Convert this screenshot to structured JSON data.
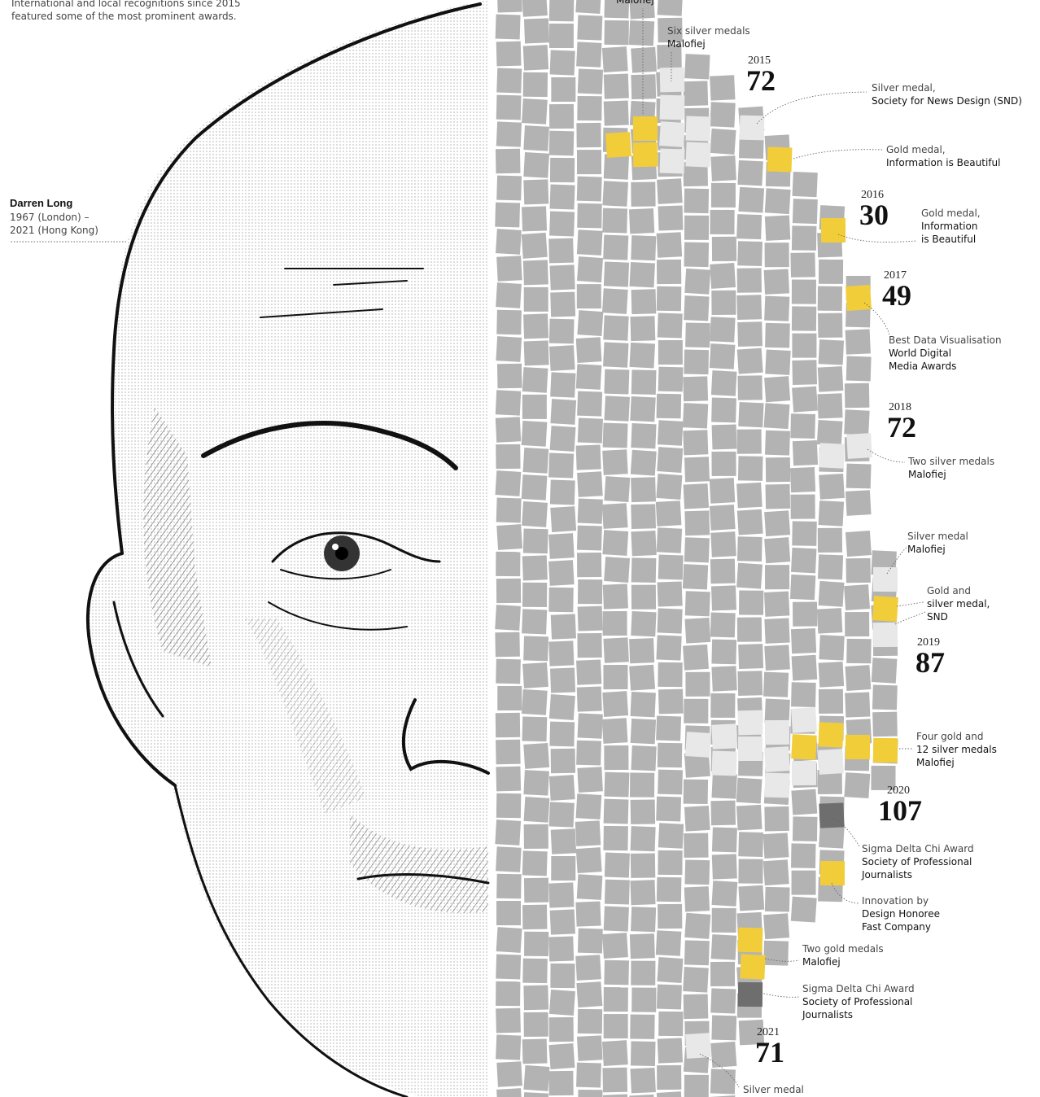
{
  "intro": {
    "lines": [
      "International and local recognitions since 2015",
      "featured some of the most prominent awards."
    ]
  },
  "person": {
    "name": "Darren Long",
    "born": "1967 (London) –",
    "died": "2021 (Hong Kong)"
  },
  "years": [
    {
      "year": "2015",
      "count": 72
    },
    {
      "year": "2016",
      "count": 30
    },
    {
      "year": "2017",
      "count": 49
    },
    {
      "year": "2018",
      "count": 72
    },
    {
      "year": "2019",
      "count": 87
    },
    {
      "year": "2020",
      "count": 107
    },
    {
      "year": "2021",
      "count": 71
    }
  ],
  "annotations": [
    {
      "lines": [
        "Malofiej"
      ]
    },
    {
      "lines": [
        "Six silver medals",
        "Malofiej"
      ]
    },
    {
      "lines": [
        "Silver medal,",
        "Society for News Design (SND)"
      ]
    },
    {
      "lines": [
        "Gold medal,",
        "Information is Beautiful"
      ]
    },
    {
      "lines": [
        "Gold medal,",
        "Information",
        "is Beautiful"
      ]
    },
    {
      "lines": [
        "Best Data Visualisation",
        "World Digital",
        "Media Awards"
      ]
    },
    {
      "lines": [
        "Two silver medals",
        "Malofiej"
      ]
    },
    {
      "lines": [
        "Silver medal",
        "Malofiej"
      ]
    },
    {
      "lines": [
        "Gold and",
        "silver medal,",
        "SND"
      ]
    },
    {
      "lines": [
        "Four gold and",
        "12 silver medals",
        "Malofiej"
      ]
    },
    {
      "lines": [
        "Sigma Delta Chi Award",
        "Society of Professional",
        "Journalists"
      ]
    },
    {
      "lines": [
        "Innovation by",
        "Design Honoree",
        "Fast Company"
      ]
    },
    {
      "lines": [
        "Two gold medals",
        "Malofiej"
      ]
    },
    {
      "lines": [
        "Sigma Delta Chi Award",
        "Society of Professional",
        "Journalists"
      ]
    },
    {
      "lines": [
        "Silver medal"
      ]
    }
  ]
}
